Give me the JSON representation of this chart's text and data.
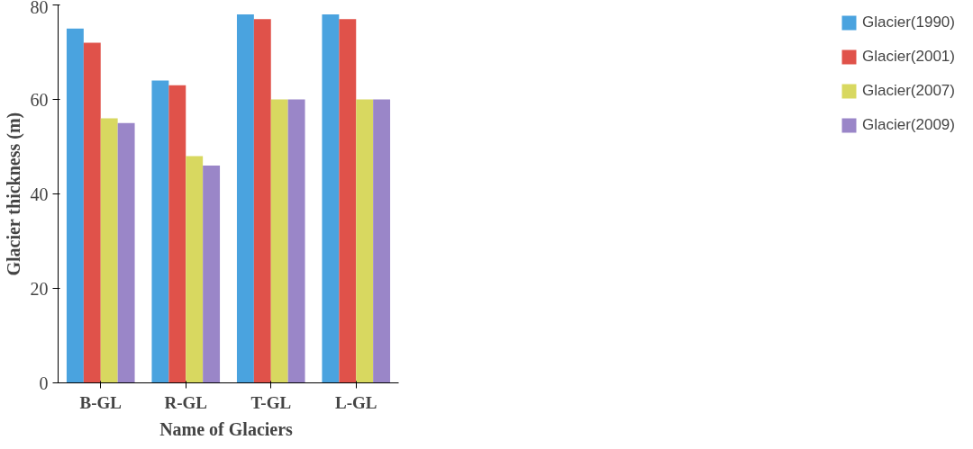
{
  "chart_data": {
    "type": "bar",
    "xlabel": "Name  of Glaciers",
    "ylabel": "Glacier thickness (m)",
    "categories": [
      "B-GL",
      "R-GL",
      "T-GL",
      "L-GL"
    ],
    "series": [
      {
        "name": "Glacier(1990)",
        "color": "#4aa3df",
        "values": [
          75,
          64,
          78,
          78
        ]
      },
      {
        "name": "Glacier(2001)",
        "color": "#e0524a",
        "values": [
          72,
          63,
          77,
          77
        ]
      },
      {
        "name": "Glacier(2007)",
        "color": "#d8d860",
        "values": [
          56,
          48,
          60,
          60
        ]
      },
      {
        "name": "Glacier(2009)",
        "color": "#9a86c8",
        "values": [
          55,
          46,
          60,
          60
        ]
      }
    ],
    "ylim": [
      0,
      80
    ],
    "yticks": [
      0,
      20,
      40,
      60,
      80
    ],
    "grid": false,
    "legend": "right"
  }
}
